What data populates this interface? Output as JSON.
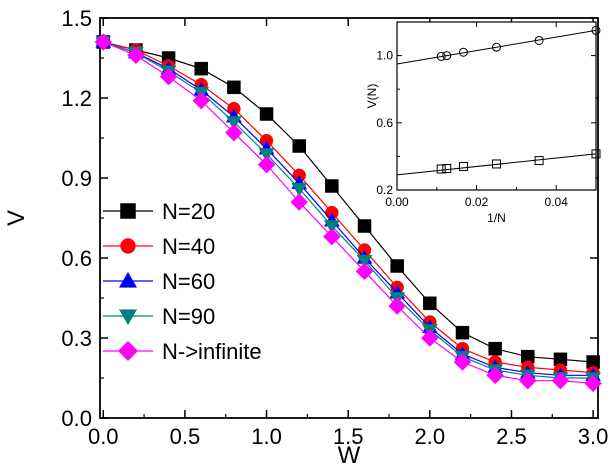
{
  "chart_data": [
    {
      "type": "line",
      "xlabel": "W",
      "ylabel": "V",
      "xlim": [
        -0.02,
        3.03
      ],
      "ylim": [
        0.0,
        1.5
      ],
      "xticks": [
        "0.0",
        "0.5",
        "1.0",
        "1.5",
        "2.0",
        "2.5",
        "3.0"
      ],
      "xtick_values": [
        0,
        0.5,
        1.0,
        1.5,
        2.0,
        2.5,
        3.0
      ],
      "yticks": [
        "0.0",
        "0.3",
        "0.6",
        "0.9",
        "1.2",
        "1.5"
      ],
      "ytick_values": [
        0.0,
        0.3,
        0.6,
        0.9,
        1.2,
        1.5
      ],
      "grid": false,
      "legend_position": "bottom-left",
      "x": [
        0.0,
        0.2,
        0.4,
        0.6,
        0.8,
        1.0,
        1.2,
        1.4,
        1.6,
        1.8,
        2.0,
        2.2,
        2.4,
        2.6,
        2.8,
        3.0
      ],
      "series": [
        {
          "name": "N=20",
          "marker": "square",
          "color": "#000000",
          "values": [
            1.41,
            1.38,
            1.35,
            1.31,
            1.24,
            1.14,
            1.02,
            0.87,
            0.72,
            0.57,
            0.43,
            0.32,
            0.26,
            0.23,
            0.22,
            0.21
          ]
        },
        {
          "name": "N=40",
          "marker": "circle",
          "color": "#ff0000",
          "values": [
            1.41,
            1.38,
            1.32,
            1.25,
            1.16,
            1.04,
            0.91,
            0.77,
            0.63,
            0.49,
            0.36,
            0.26,
            0.21,
            0.19,
            0.18,
            0.17
          ]
        },
        {
          "name": "N=60",
          "marker": "triangle-up",
          "color": "#0000ff",
          "values": [
            1.41,
            1.37,
            1.31,
            1.23,
            1.13,
            1.01,
            0.88,
            0.74,
            0.6,
            0.47,
            0.34,
            0.24,
            0.19,
            0.17,
            0.16,
            0.16
          ]
        },
        {
          "name": "N=90",
          "marker": "triangle-down",
          "color": "#008080",
          "values": [
            1.41,
            1.37,
            1.3,
            1.22,
            1.11,
            0.99,
            0.86,
            0.72,
            0.59,
            0.45,
            0.33,
            0.23,
            0.18,
            0.16,
            0.15,
            0.15
          ]
        },
        {
          "name": "N->infinite",
          "marker": "diamond",
          "color": "#ff00ff",
          "values": [
            1.41,
            1.36,
            1.28,
            1.19,
            1.07,
            0.95,
            0.81,
            0.68,
            0.55,
            0.42,
            0.3,
            0.21,
            0.16,
            0.14,
            0.14,
            0.13
          ]
        }
      ]
    },
    {
      "type": "scatter",
      "xlabel": "1/N",
      "ylabel": "V(N)",
      "xlim": [
        0.0,
        0.05
      ],
      "ylim": [
        0.2,
        1.2
      ],
      "xticks": [
        "0.00",
        "0.02",
        "0.04"
      ],
      "xtick_values": [
        0.0,
        0.02,
        0.04
      ],
      "yticks": [
        "0.2",
        "0.6",
        "1.0"
      ],
      "ytick_values": [
        0.2,
        0.6,
        1.0
      ],
      "grid": false,
      "legend_position": "none",
      "series": [
        {
          "marker": "circle",
          "x": [
            0.0111,
            0.0125,
            0.0167,
            0.025,
            0.0357,
            0.05
          ],
          "y": [
            0.995,
            1.0,
            1.02,
            1.05,
            1.09,
            1.15
          ],
          "fit": [
            [
              0.0,
              0.95
            ],
            [
              0.05,
              1.15
            ]
          ]
        },
        {
          "marker": "square",
          "x": [
            0.0111,
            0.0125,
            0.0167,
            0.025,
            0.0357,
            0.05
          ],
          "y": [
            0.325,
            0.328,
            0.34,
            0.355,
            0.375,
            0.415
          ],
          "fit": [
            [
              0.0,
              0.29
            ],
            [
              0.05,
              0.415
            ]
          ]
        }
      ]
    }
  ]
}
